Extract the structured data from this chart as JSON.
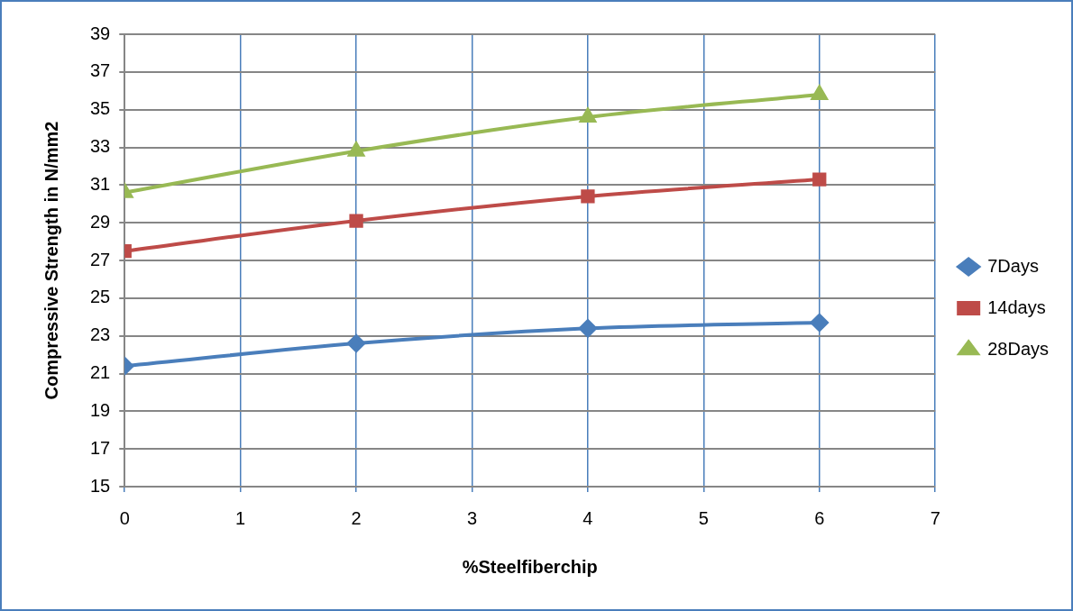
{
  "chart_data": {
    "type": "line",
    "xlabel": "%Steelfiberchip",
    "ylabel": "Compressive Strength in N/mm2",
    "x": [
      0,
      2,
      4,
      6
    ],
    "series": [
      {
        "name": "7Days",
        "color": "#4a7ebb",
        "marker": "diamond",
        "values": [
          21.4,
          22.6,
          23.4,
          23.7
        ]
      },
      {
        "name": "14days",
        "color": "#be4b48",
        "marker": "square",
        "values": [
          27.5,
          29.1,
          30.4,
          31.3
        ]
      },
      {
        "name": "28Days",
        "color": "#98b954",
        "marker": "triangle",
        "values": [
          30.6,
          32.8,
          34.6,
          35.8
        ]
      }
    ],
    "xlim": [
      0,
      7
    ],
    "xticks": [
      0,
      1,
      2,
      3,
      4,
      5,
      6,
      7
    ],
    "ylim": [
      15,
      39
    ],
    "yticks": [
      15,
      17,
      19,
      21,
      23,
      25,
      27,
      29,
      31,
      33,
      35,
      37,
      39
    ],
    "grid": true,
    "legend": "right",
    "line_style": "solid"
  }
}
